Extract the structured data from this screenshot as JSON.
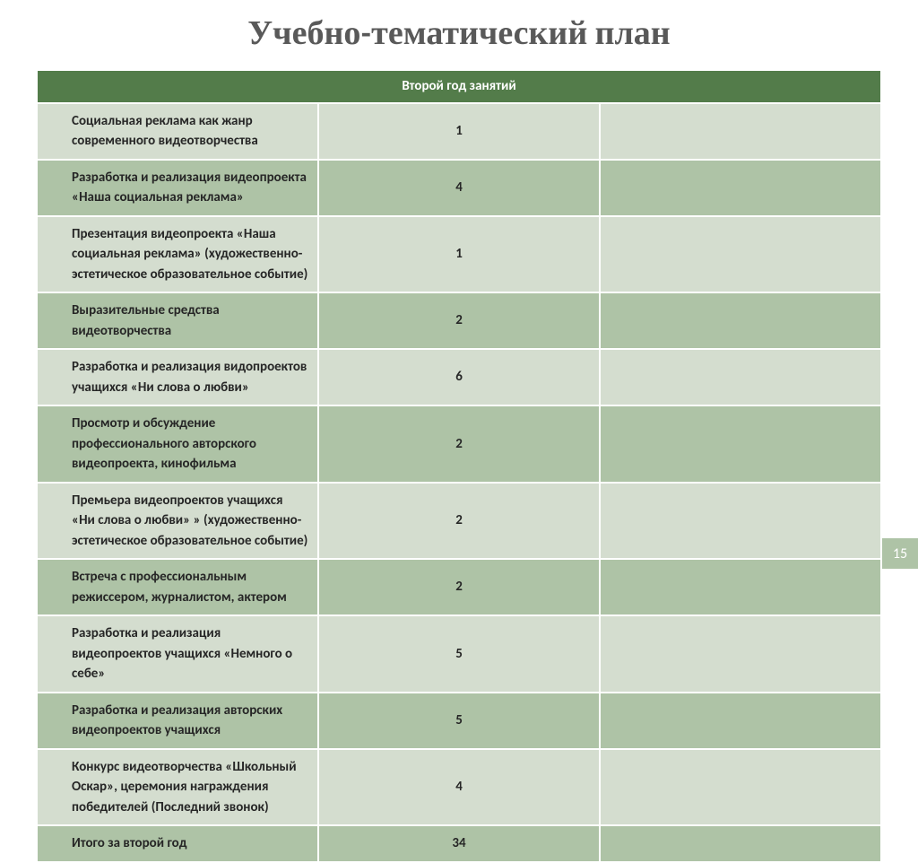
{
  "title": "Учебно-тематический план",
  "pageNumber": "15",
  "headerLabel": "Второй год занятий",
  "colors": {
    "header_bg": "#537c4a",
    "row_light": "#d4ddcf",
    "row_dark": "#aec3a6",
    "title_color": "#595959",
    "text_color": "#262626",
    "border": "#ffffff"
  },
  "columns": {
    "name_width": "72%",
    "num_width": "12%",
    "blank_width": "16%"
  },
  "rows": [
    {
      "name": "Социальная реклама как жанр современного видеотворчества",
      "value": "1",
      "shade": "light"
    },
    {
      "name": "Разработка и реализация видеопроекта «Наша социальная реклама»",
      "value": "4",
      "shade": "dark"
    },
    {
      "name": "Презентация видеопроекта «Наша социальная реклама» (художественно-эстетическое образовательное событие)",
      "value": "1",
      "shade": "light"
    },
    {
      "name": "Выразительные средства видеотворчества",
      "value": "2",
      "shade": "dark"
    },
    {
      "name": "Разработка и реализация видопроектов учащихся «Ни слова о любви»",
      "value": "6",
      "shade": "light"
    },
    {
      "name": "Просмотр и обсуждение профессионального авторского видеопроекта, кинофильма",
      "value": "2",
      "shade": "dark"
    },
    {
      "name": "Премьера видеопроектов учащихся «Ни слова о любви» » (художественно-эстетическое образовательное событие)",
      "value": "2",
      "shade": "light"
    },
    {
      "name": "Встреча с профессиональным режиссером, журналистом, актером",
      "value": "2",
      "shade": "dark"
    },
    {
      "name": "Разработка и реализация видеопроектов учащихся «Немного о себе»",
      "value": "5",
      "shade": "light"
    },
    {
      "name": "Разработка и реализация авторских видеопроектов учащихся",
      "value": "5",
      "shade": "dark"
    },
    {
      "name": "Конкурс видеотворчества «Школьный Оскар», церемония награждения победителей (Последний звонок)",
      "value": "4",
      "shade": "light"
    },
    {
      "name": "Итого за второй год",
      "value": "34",
      "shade": "dark"
    }
  ]
}
